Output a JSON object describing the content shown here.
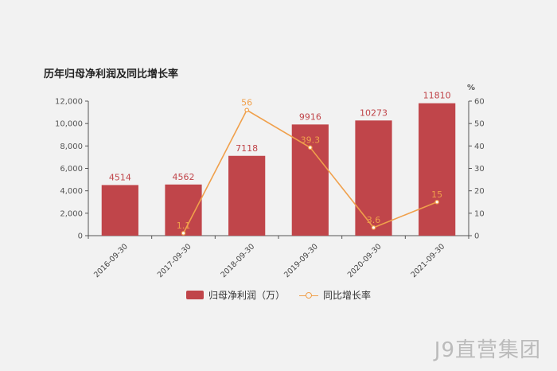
{
  "chart_data": {
    "type": "bar",
    "title": "历年归母净利润及同比增长率",
    "categories": [
      "2016-09-30",
      "2017-09-30",
      "2018-09-30",
      "2019-09-30",
      "2020-09-30",
      "2021-09-30"
    ],
    "series": [
      {
        "name": "归母净利润（万）",
        "type": "bar",
        "axis": "left",
        "color": "#c0454a",
        "values": [
          4514,
          4562,
          7118,
          9916,
          10273,
          11810
        ],
        "labels": [
          "4514",
          "4562",
          "7118",
          "9916",
          "10273",
          "11810"
        ]
      },
      {
        "name": "同比增长率",
        "type": "line",
        "axis": "right",
        "color": "#f0a04b",
        "values": [
          null,
          1.1,
          56,
          39.3,
          3.6,
          15
        ],
        "labels": [
          "",
          "1.1",
          "56",
          "39.3",
          "3.6",
          "15"
        ]
      }
    ],
    "y_left": {
      "ylim": [
        0,
        12000
      ],
      "ticks": [
        "0",
        "2,000",
        "4,000",
        "6,000",
        "8,000",
        "10,000",
        "12,000"
      ]
    },
    "y_right": {
      "label": "%",
      "ylim": [
        0,
        60
      ],
      "ticks": [
        "0",
        "10",
        "20",
        "30",
        "40",
        "50",
        "60"
      ]
    },
    "grid": false,
    "legend": "bottom-center"
  },
  "watermark": "J9直营集团"
}
